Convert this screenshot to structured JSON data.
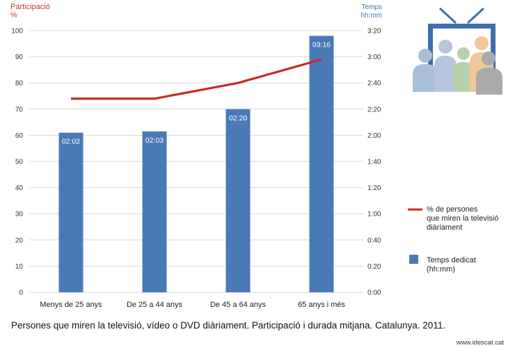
{
  "chart_data": {
    "type": "bar",
    "categories": [
      "Menys de 25 anys",
      "De 25 a 44 anys",
      "De 45 a 64 anys",
      "65 anys i més"
    ],
    "series": [
      {
        "name": "Temps dedicat (hh:mm)",
        "kind": "bar",
        "axis": "right",
        "values_minutes": [
          122,
          123,
          140,
          196
        ],
        "labels": [
          "02:02",
          "02:03",
          "02:20",
          "03:16"
        ],
        "color": "#4a7ab5"
      },
      {
        "name": "% de persones que miren la televisió diàriament",
        "kind": "line",
        "axis": "left",
        "values": [
          74,
          74,
          80,
          89
        ],
        "color": "#c92a2a"
      }
    ],
    "left_axis": {
      "title_line1": "Participació",
      "title_line2": "%",
      "ylim": [
        0,
        100
      ],
      "ticks": [
        "0",
        "10",
        "20",
        "30",
        "40",
        "50",
        "60",
        "70",
        "80",
        "90",
        "100"
      ]
    },
    "right_axis": {
      "title_line1": "Temps",
      "title_line2": "hh:mm",
      "ylim_minutes": [
        0,
        200
      ],
      "ticks": [
        "0:00",
        "0:20",
        "0:40",
        "1:00",
        "1:20",
        "1:40",
        "2:00",
        "2:20",
        "2:40",
        "3:00",
        "3:20"
      ]
    },
    "legend": {
      "placement": "right",
      "line_label_lines": [
        "% de persones",
        "que miren la televisió",
        "diàriament"
      ],
      "bar_label_lines": [
        "Temps dedicat",
        "(hh:mm)"
      ]
    },
    "grid": true,
    "title": "Persones que miren la televisió, vídeo o DVD diàriament. Participació i durada mitjana. Catalunya. 2011."
  },
  "source": "www.idescat.cat",
  "illustration_icon": "tv-audience-icon",
  "colors": {
    "bar": "#4a7ab5",
    "line": "#c92a2a",
    "left_axis_title": "#c0392b",
    "right_axis_title": "#3d78b8",
    "grid": "#d9d9d9"
  }
}
